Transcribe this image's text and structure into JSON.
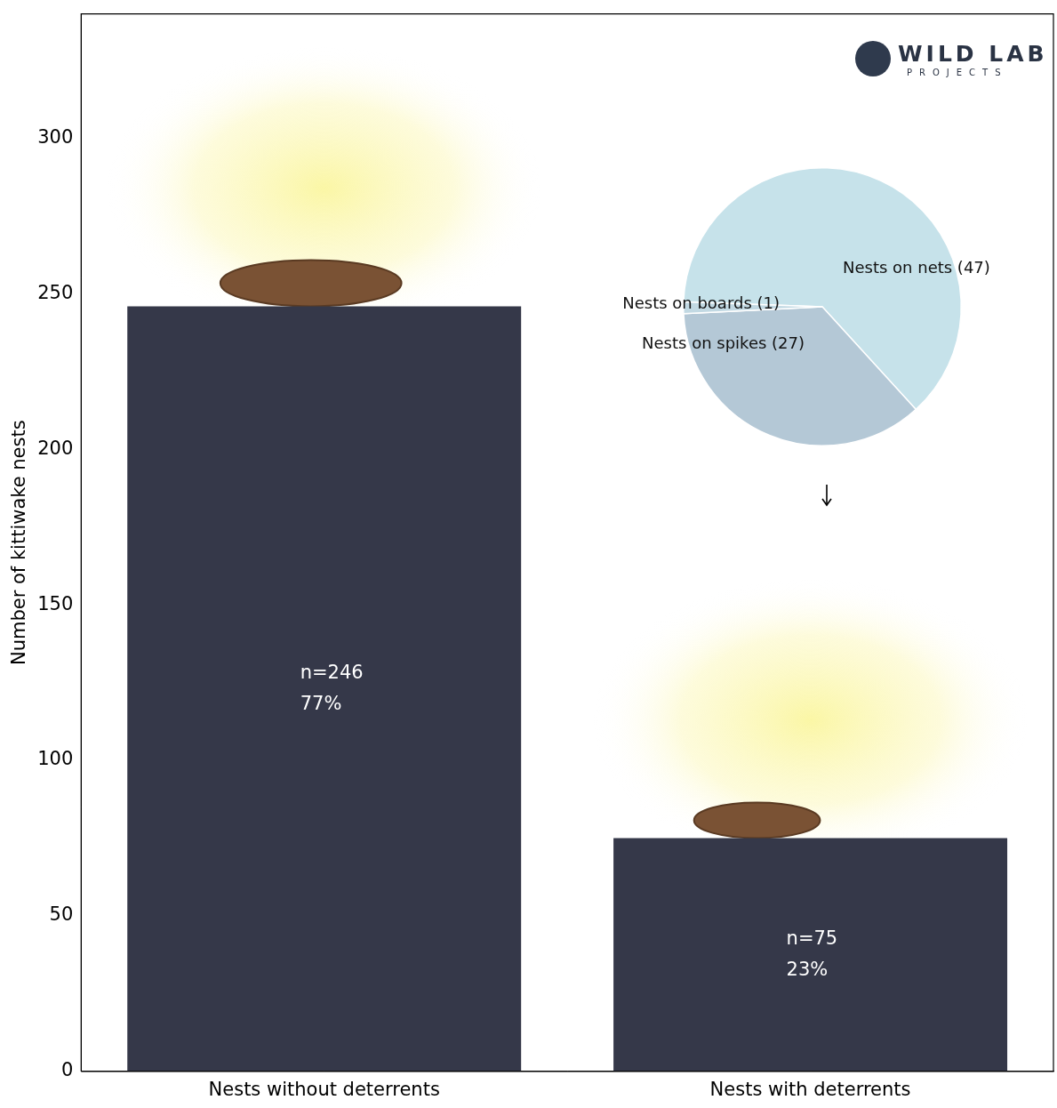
{
  "chart_data": [
    {
      "type": "bar",
      "categories": [
        "Nests without deterrents",
        "Nests with deterrents"
      ],
      "values": [
        246,
        75
      ],
      "value_labels": [
        [
          "n=246",
          "77%"
        ],
        [
          "n=75",
          "23%"
        ]
      ],
      "data_labels": true,
      "color": "#353849",
      "ylabel": "Number of kittiwake nests",
      "ylim": [
        0,
        340
      ],
      "yticks": [
        0,
        50,
        100,
        150,
        200,
        250,
        300
      ],
      "grid": false,
      "annotations": [
        "WILD LAB",
        "PROJECTS"
      ]
    },
    {
      "type": "pie",
      "categories": [
        "Nests on nets (47)",
        "Nests on spikes (27)",
        "Nests on boards (1)"
      ],
      "values": [
        47,
        27,
        1
      ],
      "colors": [
        "#c6e2ea",
        "#b4c8d6",
        "#c2d9e3"
      ]
    }
  ]
}
